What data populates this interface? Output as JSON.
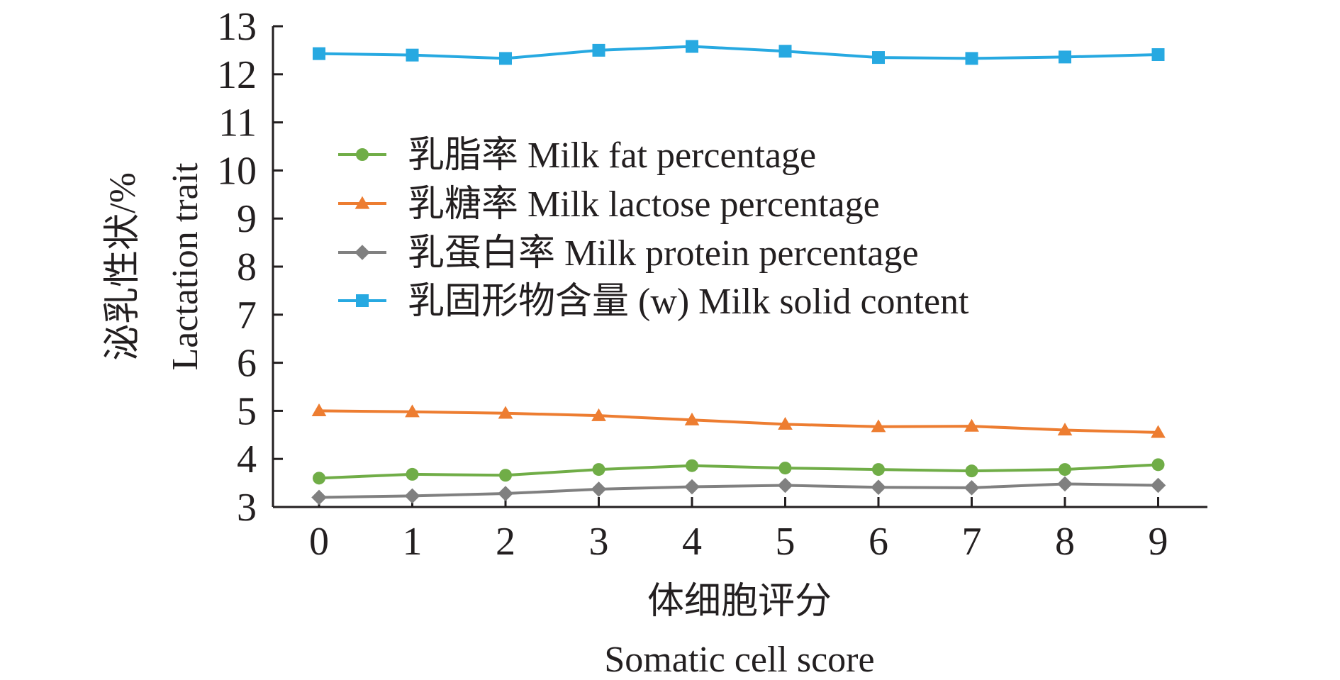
{
  "chart_data": {
    "type": "line",
    "x": [
      0,
      1,
      2,
      3,
      4,
      5,
      6,
      7,
      8,
      9
    ],
    "xlabel_zh": "体细胞评分",
    "xlabel_en": "Somatic cell score",
    "ylabel_zh": "泌乳性状/%",
    "ylabel_en": "Lactation trait",
    "ylim": [
      3,
      13
    ],
    "yticks": [
      3,
      4,
      5,
      6,
      7,
      8,
      9,
      10,
      11,
      12,
      13
    ],
    "grid": false,
    "legend_position": "upper-left inside",
    "series": [
      {
        "name": "乳脂率 Milk fat percentage",
        "color": "#70ad47",
        "marker": "circle",
        "values": [
          3.6,
          3.68,
          3.66,
          3.78,
          3.86,
          3.81,
          3.78,
          3.75,
          3.78,
          3.88
        ]
      },
      {
        "name": "乳糖率 Milk lactose percentage",
        "color": "#ed7d31",
        "marker": "triangle",
        "values": [
          5.0,
          4.98,
          4.95,
          4.9,
          4.81,
          4.72,
          4.67,
          4.68,
          4.6,
          4.55
        ]
      },
      {
        "name": "乳蛋白率 Milk protein percentage",
        "color": "#808080",
        "marker": "diamond",
        "values": [
          3.2,
          3.23,
          3.28,
          3.37,
          3.42,
          3.45,
          3.41,
          3.4,
          3.48,
          3.45
        ]
      },
      {
        "name": "乳固形物含量 (w) Milk solid content",
        "color": "#27a9e1",
        "marker": "square",
        "values": [
          12.43,
          12.4,
          12.33,
          12.5,
          12.58,
          12.48,
          12.35,
          12.33,
          12.36,
          12.41
        ]
      }
    ]
  }
}
